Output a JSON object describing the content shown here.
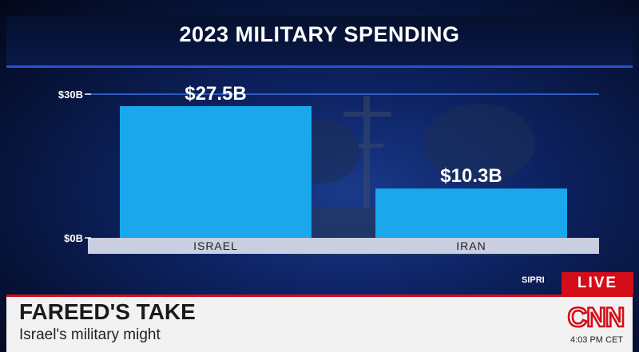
{
  "chart_data": {
    "type": "bar",
    "title": "2023 MILITARY SPENDING",
    "categories": [
      "ISRAEL",
      "IRAN"
    ],
    "values": [
      27.5,
      10.3
    ],
    "value_labels": [
      "$27.5B",
      "$10.3B"
    ],
    "y_ticks": [
      {
        "value": 0,
        "label": "$0B"
      },
      {
        "value": 30,
        "label": "$30B"
      }
    ],
    "ylim": [
      0,
      30
    ],
    "grid": false,
    "legend": "none",
    "source": "SIPRI"
  },
  "colors": {
    "bar": "#1aa7ec",
    "category_band": "#c9cee0",
    "live_red": "#d40d19",
    "cnn_red": "#d40d19"
  },
  "broadcast": {
    "live_label": "LIVE",
    "headline": "FAREED'S TAKE",
    "subheadline": "Israel's military might",
    "clock": "4:03 PM CET",
    "logo": "CNN",
    "logo_icon": "cnn-logo"
  }
}
